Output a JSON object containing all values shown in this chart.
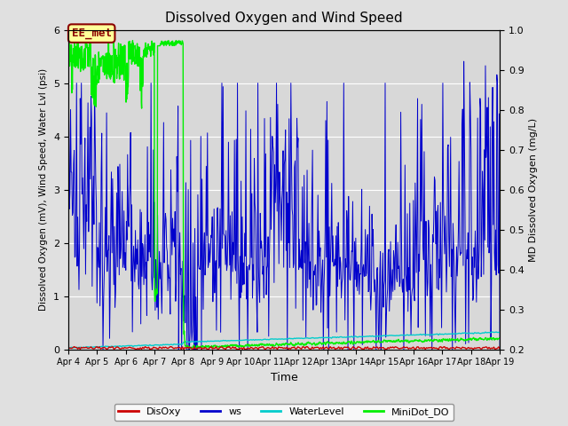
{
  "title": "Dissolved Oxygen and Wind Speed",
  "xlabel": "Time",
  "ylabel_left": "Dissolved Oxygen (mV), Wind Speed, Water Lvl (psi)",
  "ylabel_right": "MD Dissolved Oxygen (mg/L)",
  "ylim_left": [
    0.0,
    6.0
  ],
  "ylim_right": [
    0.2,
    1.0
  ],
  "fig_bg_color": "#e0e0e0",
  "plot_bg_color": "#d8d8d8",
  "tick_dates": [
    "Apr 4",
    "Apr 5",
    "Apr 6",
    "Apr 7",
    "Apr 8",
    "Apr 9",
    "Apr 10",
    "Apr 11",
    "Apr 12",
    "Apr 13",
    "Apr 14",
    "Apr 15",
    "Apr 16",
    "Apr 17",
    "Apr 18",
    "Apr 19"
  ],
  "annotation_text": "EE_met",
  "annotation_box_color": "#8B0000",
  "annotation_fill": "#ffff99",
  "colors": {
    "DisOxy": "#cc0000",
    "ws": "#0000cc",
    "WaterLevel": "#00cccc",
    "MiniDot_DO": "#00ee00"
  },
  "legend_labels": [
    "DisOxy",
    "ws",
    "WaterLevel",
    "MiniDot_DO"
  ],
  "n_days": 15,
  "figsize": [
    6.4,
    4.8
  ],
  "dpi": 100
}
